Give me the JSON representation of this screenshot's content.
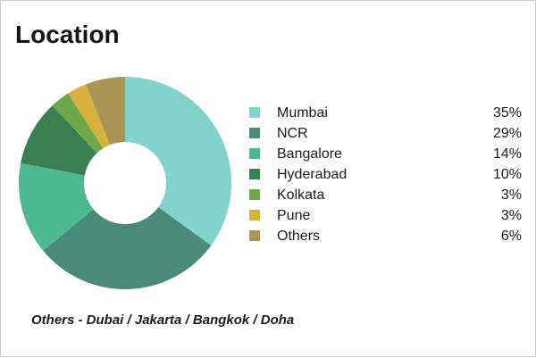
{
  "card": {
    "title": "Location",
    "footnote": "Others - Dubai / Jakarta / Bangkok / Doha"
  },
  "chart_data": {
    "type": "pie",
    "variant": "donut",
    "title": "Location",
    "categories": [
      "Mumbai",
      "NCR",
      "Bangalore",
      "Hyderabad",
      "Kolkata",
      "Pune",
      "Others"
    ],
    "values": [
      35,
      29,
      14,
      10,
      3,
      3,
      6
    ],
    "value_labels": [
      "35%",
      "29%",
      "14%",
      "10%",
      "3%",
      "3%",
      "6%"
    ],
    "colors": [
      "#82d3cc",
      "#4a8a78",
      "#4cb992",
      "#3a7f52",
      "#6fa84a",
      "#d6b13c",
      "#a99456"
    ],
    "legend": "right",
    "start_angle": "12 o'clock",
    "direction": "clockwise"
  }
}
